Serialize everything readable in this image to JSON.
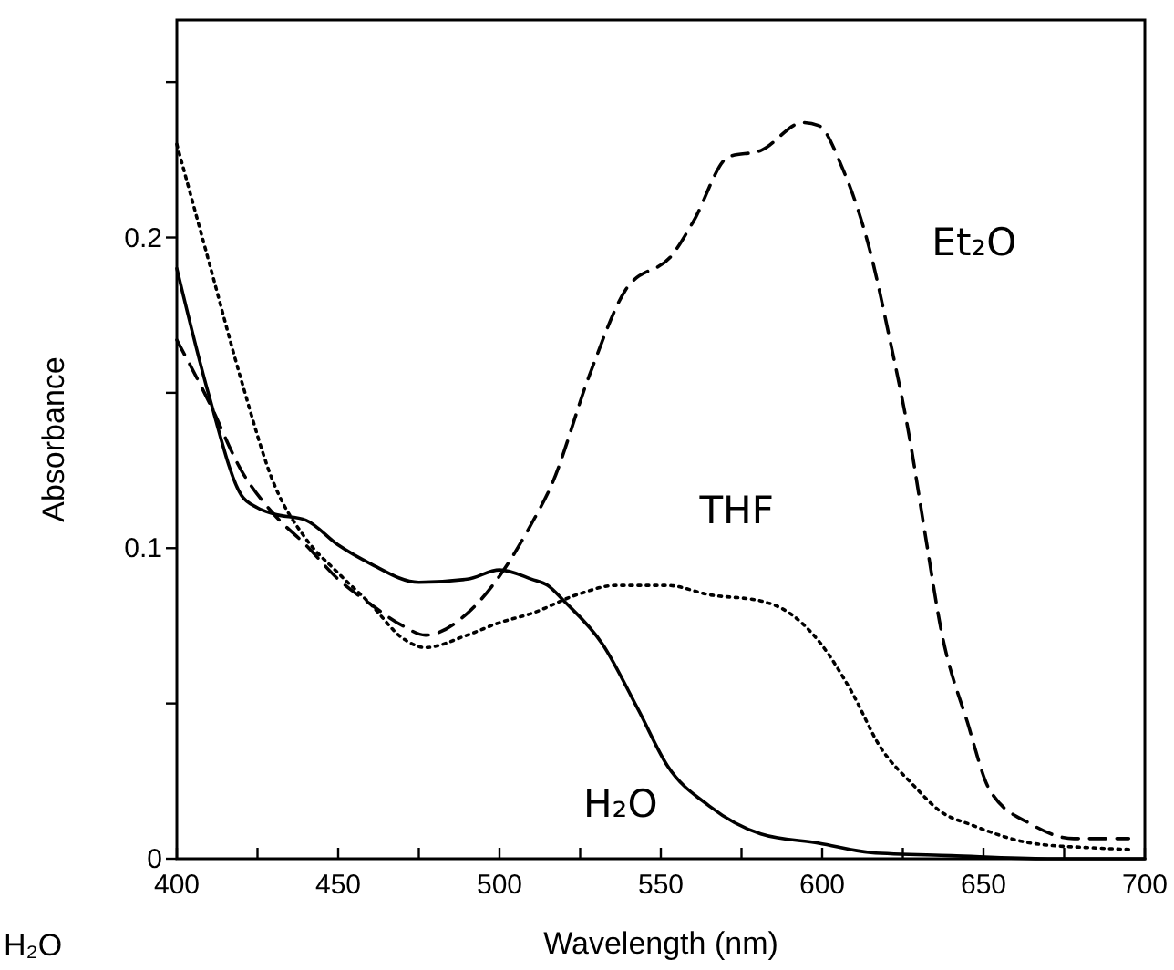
{
  "chart_data": {
    "type": "line",
    "xlabel": "Wavelength (nm)",
    "ylabel": "Absorbance",
    "xlim": [
      400,
      700
    ],
    "ylim": [
      0,
      0.27
    ],
    "xticks": [
      400,
      {
        "value": 425,
        "label": null
      },
      450,
      {
        "value": 475,
        "label": null
      },
      500,
      {
        "value": 525,
        "label": null
      },
      550,
      {
        "value": 575,
        "label": null
      },
      600,
      {
        "value": 625,
        "label": null
      },
      650,
      {
        "value": 675,
        "label": null
      },
      700
    ],
    "yticks": [
      0,
      {
        "value": 0.05,
        "label": null
      },
      0.1,
      {
        "value": 0.15,
        "label": null
      },
      0.2,
      {
        "value": 0.25,
        "label": null
      }
    ],
    "grid": false,
    "marker": "none",
    "annotations": [
      "H₂O"
    ],
    "series": [
      {
        "name": "H₂O",
        "color": "#000000",
        "line_style": "solid",
        "x": [
          400,
          410,
          420,
          425,
          430,
          440,
          450,
          460,
          475,
          490,
          500,
          510,
          515,
          520,
          532,
          543,
          552,
          565,
          581,
          599,
          615,
          640,
          670,
          700
        ],
        "values": [
          0.19,
          0.149,
          0.117,
          0.113,
          0.111,
          0.109,
          0.101,
          0.095,
          0.089,
          0.09,
          0.093,
          0.09,
          0.088,
          0.083,
          0.069,
          0.048,
          0.03,
          0.017,
          0.008,
          0.005,
          0.002,
          0.001,
          0,
          0
        ]
      },
      {
        "name": "THF",
        "color": "#000000",
        "line_style": "dotted",
        "x": [
          400,
          410,
          420,
          430,
          440,
          450,
          460,
          470,
          477,
          490,
          500,
          510,
          524,
          536,
          552,
          565,
          581,
          590,
          599,
          609,
          618,
          628,
          637,
          646,
          665,
          684,
          695
        ],
        "values": [
          0.23,
          0.192,
          0.154,
          0.121,
          0.103,
          0.092,
          0.082,
          0.071,
          0.068,
          0.072,
          0.076,
          0.079,
          0.085,
          0.088,
          0.088,
          0.085,
          0.083,
          0.079,
          0.07,
          0.054,
          0.036,
          0.024,
          0.015,
          0.011,
          0.005,
          0.0035,
          0.003
        ]
      },
      {
        "name": "Et₂O",
        "color": "#000000",
        "line_style": "dashed",
        "x": [
          400,
          410,
          420,
          430,
          440,
          450,
          460,
          470,
          477,
          490,
          500,
          510,
          516,
          528,
          539,
          554,
          560,
          571,
          581,
          594,
          599,
          606,
          615,
          621,
          627,
          632,
          637,
          645,
          652,
          665,
          678,
          695
        ],
        "values": [
          0.167,
          0.147,
          0.125,
          0.111,
          0.101,
          0.09,
          0.082,
          0.075,
          0.072,
          0.079,
          0.091,
          0.108,
          0.12,
          0.156,
          0.183,
          0.195,
          0.205,
          0.226,
          0.228,
          0.237,
          0.236,
          0.223,
          0.195,
          0.167,
          0.136,
          0.104,
          0.073,
          0.044,
          0.022,
          0.011,
          0.0065,
          0.0065
        ]
      }
    ]
  }
}
